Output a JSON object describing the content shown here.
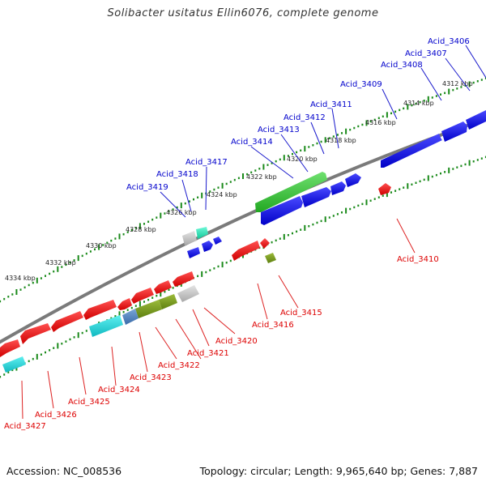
{
  "title": "Solibacter usitatus Ellin6076, complete genome",
  "footer": {
    "accession": "Accession: NC_008536",
    "summary": "Topology: circular; Length: 9,965,640 bp; Genes: 7,887"
  },
  "colors": {
    "backbone": "#7a7a7a",
    "tick": "#1a8a1a",
    "forward_label": "#0000cc",
    "reverse_label": "#dd0000",
    "leader_forward": "#1a1acc",
    "leader_reverse": "#dd2222"
  },
  "scale_labels": [
    "4312 kbp",
    "4314 kbp",
    "4316 kbp",
    "4318 kbp",
    "4320 kbp",
    "4322 kbp",
    "4324 kbp",
    "4326 kbp",
    "4328 kbp",
    "4330 kbp",
    "4332 kbp",
    "4334 kbp"
  ],
  "forward_genes": [
    {
      "label": "Acid_3406"
    },
    {
      "label": "Acid_3407"
    },
    {
      "label": "Acid_3408"
    },
    {
      "label": "Acid_3409"
    },
    {
      "label": "Acid_3411"
    },
    {
      "label": "Acid_3412"
    },
    {
      "label": "Acid_3413"
    },
    {
      "label": "Acid_3414"
    },
    {
      "label": "Acid_3417"
    },
    {
      "label": "Acid_3418"
    },
    {
      "label": "Acid_3419"
    }
  ],
  "reverse_genes": [
    {
      "label": "Acid_3410"
    },
    {
      "label": "Acid_3415"
    },
    {
      "label": "Acid_3416"
    },
    {
      "label": "Acid_3420"
    },
    {
      "label": "Acid_3421"
    },
    {
      "label": "Acid_3422"
    },
    {
      "label": "Acid_3423"
    },
    {
      "label": "Acid_3424"
    },
    {
      "label": "Acid_3425"
    },
    {
      "label": "Acid_3426"
    },
    {
      "label": "Acid_3427"
    }
  ]
}
